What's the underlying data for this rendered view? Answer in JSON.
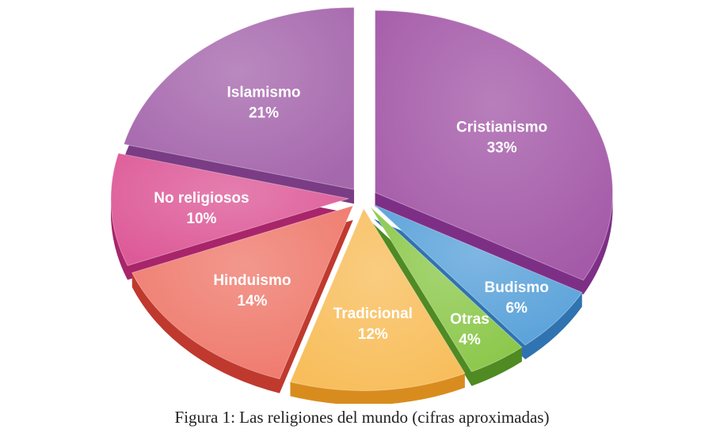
{
  "chart_data": {
    "type": "pie",
    "style": "3d-exploded",
    "title": "Figura 1: Las religiones del mundo (cifras aproximadas)",
    "slices": [
      {
        "name": "Cristianismo",
        "value": 33,
        "label": "33%",
        "color": "#a45aa8",
        "side": "#7d2f86"
      },
      {
        "name": "Budismo",
        "value": 6,
        "label": "6%",
        "color": "#5aa2da",
        "side": "#2f73b0"
      },
      {
        "name": "Otras",
        "value": 4,
        "label": "4%",
        "color": "#8cc84b",
        "side": "#4f8a22"
      },
      {
        "name": "Tradicional",
        "value": 12,
        "label": "12%",
        "color": "#f8be5c",
        "side": "#d98c1e"
      },
      {
        "name": "Hinduismo",
        "value": 14,
        "label": "14%",
        "color": "#ef7a6d",
        "side": "#c0392e"
      },
      {
        "name": "No religiosos",
        "value": 10,
        "label": "10%",
        "color": "#dd5a98",
        "side": "#a8256a"
      },
      {
        "name": "Islamismo",
        "value": 21,
        "label": "21%",
        "color": "#a668ad",
        "side": "#7a3c84"
      }
    ]
  }
}
